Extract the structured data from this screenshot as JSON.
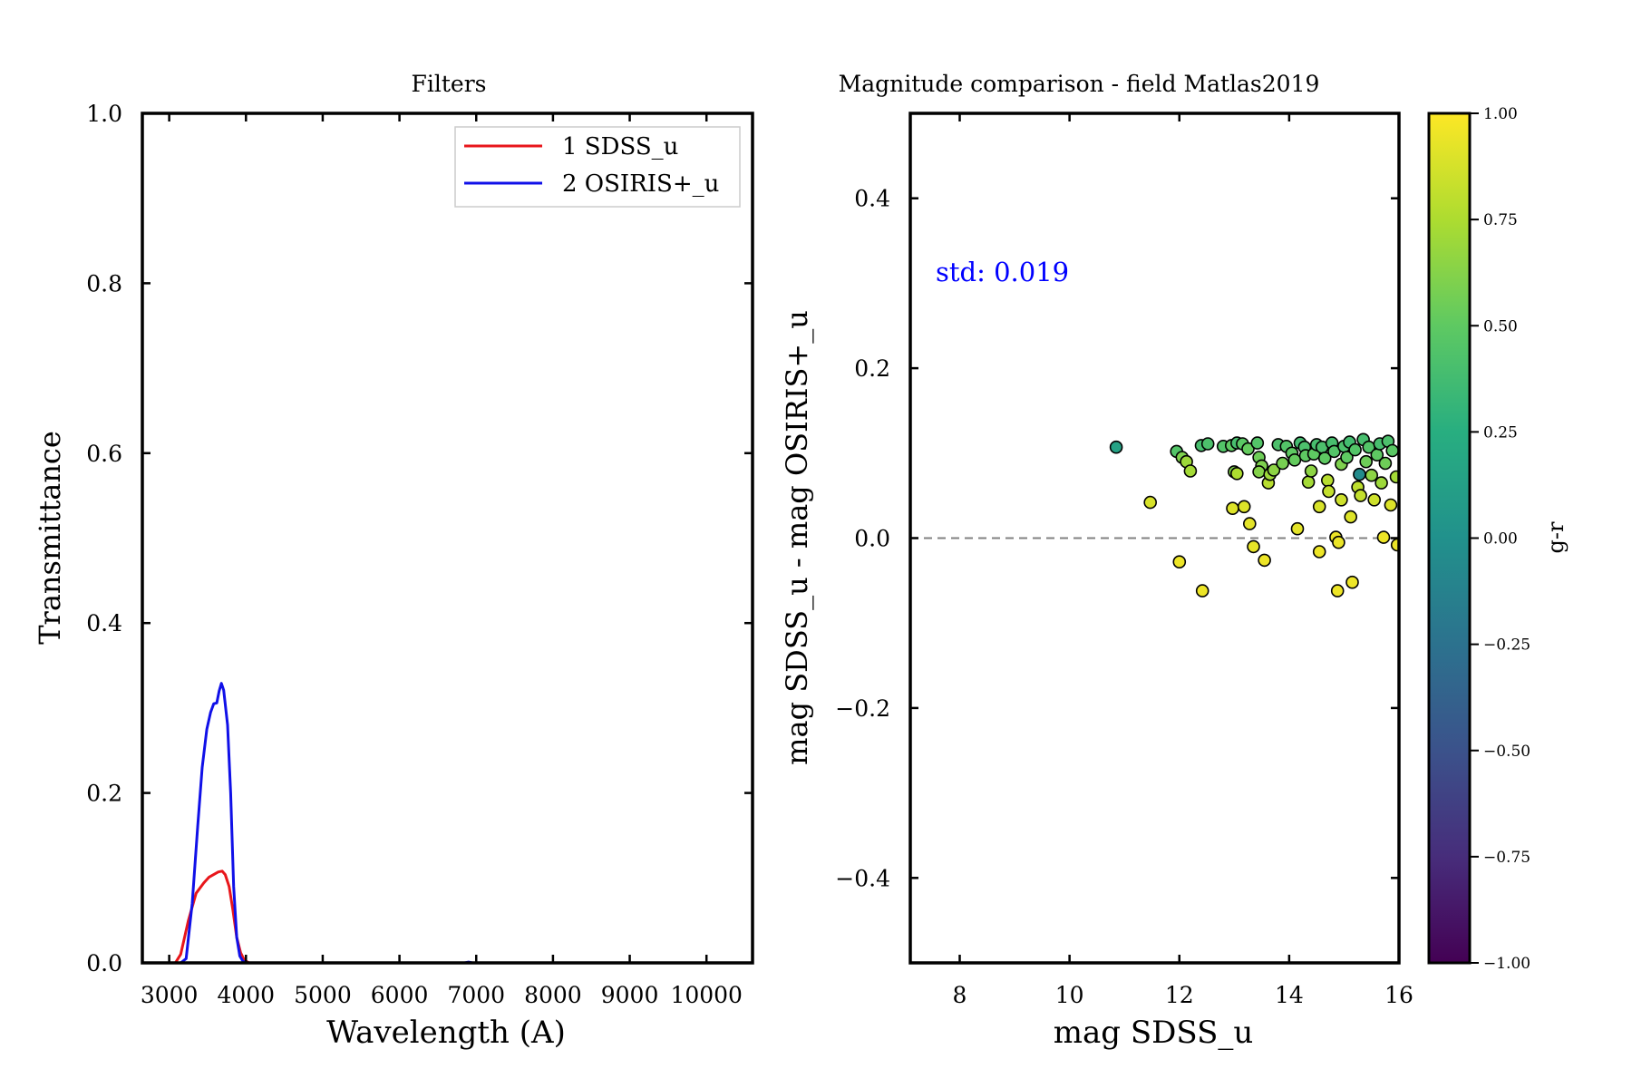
{
  "chart_data": [
    {
      "type": "line",
      "title": "Filters",
      "xlabel": "Wavelength (A)",
      "ylabel": "Transmittance",
      "xlim": [
        2650,
        10600
      ],
      "ylim": [
        0.0,
        1.0
      ],
      "x_ticks": [
        3000,
        4000,
        5000,
        6000,
        7000,
        8000,
        9000,
        10000
      ],
      "x_tick_labels": [
        "3000",
        "4000",
        "5000",
        "6000",
        "7000",
        "8000",
        "9000",
        "10000"
      ],
      "y_ticks": [
        0.0,
        0.2,
        0.4,
        0.6,
        0.8,
        1.0
      ],
      "y_tick_labels": [
        "0.0",
        "0.2",
        "0.4",
        "0.6",
        "0.8",
        "1.0"
      ],
      "legend_position": "top-right",
      "grid": false,
      "series": [
        {
          "name": "1 SDSS_u",
          "color": "#e8161b",
          "x": [
            2980,
            3080,
            3150,
            3250,
            3350,
            3450,
            3520,
            3580,
            3640,
            3690,
            3730,
            3780,
            3830,
            3880,
            3930,
            3980,
            4040,
            4100,
            7000
          ],
          "y": [
            0.0,
            0.0,
            0.01,
            0.05,
            0.082,
            0.094,
            0.101,
            0.104,
            0.107,
            0.108,
            0.104,
            0.09,
            0.062,
            0.03,
            0.012,
            0.003,
            0.0,
            0.0,
            0.0
          ]
        },
        {
          "name": "2 OSIRIS+_u",
          "color": "#1010e8",
          "x": [
            2980,
            3150,
            3220,
            3300,
            3370,
            3430,
            3490,
            3540,
            3580,
            3620,
            3650,
            3680,
            3710,
            3760,
            3800,
            3840,
            3880,
            3920,
            3960,
            4020,
            6850,
            6900,
            6950,
            7000
          ],
          "y": [
            0.0,
            0.0,
            0.005,
            0.07,
            0.16,
            0.23,
            0.275,
            0.295,
            0.305,
            0.306,
            0.32,
            0.329,
            0.321,
            0.28,
            0.2,
            0.09,
            0.03,
            0.008,
            0.002,
            0.0,
            0.0,
            0.001,
            0.0,
            0.0
          ]
        }
      ]
    },
    {
      "type": "scatter",
      "title": "Magnitude comparison - field Matlas2019",
      "xlabel": "mag SDSS_u",
      "ylabel": "mag SDSS_u - mag OSIRIS+_u",
      "xlim": [
        7.1,
        16.0
      ],
      "ylim": [
        -0.5,
        0.5
      ],
      "x_ticks": [
        8,
        10,
        12,
        14,
        16
      ],
      "x_tick_labels": [
        "8",
        "10",
        "12",
        "14",
        "16"
      ],
      "y_ticks": [
        -0.4,
        -0.2,
        0.0,
        0.2,
        0.4
      ],
      "y_tick_labels": [
        "−0.4",
        "−0.2",
        "0.0",
        "0.2",
        "0.4"
      ],
      "reference_line_y": 0.0,
      "annotation": {
        "text": "std: 0.019",
        "color": "#0000ff"
      },
      "colorbar": {
        "label": "g-r",
        "range": [
          -1.0,
          1.0
        ],
        "ticks": [
          -1.0,
          -0.75,
          -0.5,
          -0.25,
          0.0,
          0.25,
          0.5,
          0.75,
          1.0
        ],
        "tick_labels": [
          "−1.00",
          "−0.75",
          "−0.50",
          "−0.25",
          "0.00",
          "0.25",
          "0.50",
          "0.75",
          "1.00"
        ],
        "colormap": "viridis"
      },
      "points": [
        {
          "x": 10.85,
          "y": 0.107,
          "c": 0.15
        },
        {
          "x": 11.47,
          "y": 0.042,
          "c": 0.88
        },
        {
          "x": 11.95,
          "y": 0.102,
          "c": 0.45
        },
        {
          "x": 12.05,
          "y": 0.095,
          "c": 0.6
        },
        {
          "x": 12.13,
          "y": 0.09,
          "c": 0.7
        },
        {
          "x": 12.2,
          "y": 0.079,
          "c": 0.72
        },
        {
          "x": 12.0,
          "y": -0.028,
          "c": 0.95
        },
        {
          "x": 12.42,
          "y": -0.062,
          "c": 0.95
        },
        {
          "x": 12.4,
          "y": 0.109,
          "c": 0.4
        },
        {
          "x": 12.52,
          "y": 0.111,
          "c": 0.42
        },
        {
          "x": 12.8,
          "y": 0.108,
          "c": 0.45
        },
        {
          "x": 12.95,
          "y": 0.109,
          "c": 0.5
        },
        {
          "x": 13.05,
          "y": 0.112,
          "c": 0.4
        },
        {
          "x": 13.15,
          "y": 0.111,
          "c": 0.48
        },
        {
          "x": 13.25,
          "y": 0.105,
          "c": 0.52
        },
        {
          "x": 13.0,
          "y": 0.078,
          "c": 0.6
        },
        {
          "x": 13.05,
          "y": 0.076,
          "c": 0.75
        },
        {
          "x": 12.97,
          "y": 0.035,
          "c": 0.9
        },
        {
          "x": 13.18,
          "y": 0.037,
          "c": 0.9
        },
        {
          "x": 13.28,
          "y": 0.017,
          "c": 0.92
        },
        {
          "x": 13.35,
          "y": -0.01,
          "c": 0.93
        },
        {
          "x": 13.55,
          "y": -0.026,
          "c": 0.95
        },
        {
          "x": 13.42,
          "y": 0.112,
          "c": 0.45
        },
        {
          "x": 13.45,
          "y": 0.095,
          "c": 0.55
        },
        {
          "x": 13.5,
          "y": 0.085,
          "c": 0.6
        },
        {
          "x": 13.45,
          "y": 0.078,
          "c": 0.62
        },
        {
          "x": 13.62,
          "y": 0.065,
          "c": 0.78
        },
        {
          "x": 13.65,
          "y": 0.075,
          "c": 0.7
        },
        {
          "x": 13.72,
          "y": 0.08,
          "c": 0.65
        },
        {
          "x": 13.8,
          "y": 0.11,
          "c": 0.42
        },
        {
          "x": 13.88,
          "y": 0.088,
          "c": 0.58
        },
        {
          "x": 13.95,
          "y": 0.108,
          "c": 0.45
        },
        {
          "x": 14.05,
          "y": 0.1,
          "c": 0.5
        },
        {
          "x": 14.1,
          "y": 0.092,
          "c": 0.52
        },
        {
          "x": 14.15,
          "y": 0.011,
          "c": 0.92
        },
        {
          "x": 14.2,
          "y": 0.112,
          "c": 0.38
        },
        {
          "x": 14.28,
          "y": 0.107,
          "c": 0.42
        },
        {
          "x": 14.3,
          "y": 0.097,
          "c": 0.5
        },
        {
          "x": 14.35,
          "y": 0.066,
          "c": 0.72
        },
        {
          "x": 14.4,
          "y": 0.079,
          "c": 0.65
        },
        {
          "x": 14.45,
          "y": 0.099,
          "c": 0.5
        },
        {
          "x": 14.5,
          "y": 0.11,
          "c": 0.4
        },
        {
          "x": 14.55,
          "y": 0.037,
          "c": 0.88
        },
        {
          "x": 14.55,
          "y": -0.016,
          "c": 0.95
        },
        {
          "x": 14.6,
          "y": 0.107,
          "c": 0.42
        },
        {
          "x": 14.65,
          "y": 0.094,
          "c": 0.5
        },
        {
          "x": 14.7,
          "y": 0.068,
          "c": 0.78
        },
        {
          "x": 14.72,
          "y": 0.055,
          "c": 0.82
        },
        {
          "x": 14.78,
          "y": 0.112,
          "c": 0.4
        },
        {
          "x": 14.82,
          "y": 0.102,
          "c": 0.45
        },
        {
          "x": 14.85,
          "y": 0.001,
          "c": 0.95
        },
        {
          "x": 14.9,
          "y": -0.005,
          "c": 0.94
        },
        {
          "x": 14.88,
          "y": -0.062,
          "c": 0.95
        },
        {
          "x": 14.95,
          "y": 0.045,
          "c": 0.85
        },
        {
          "x": 14.95,
          "y": 0.087,
          "c": 0.6
        },
        {
          "x": 15.0,
          "y": 0.108,
          "c": 0.42
        },
        {
          "x": 15.05,
          "y": 0.095,
          "c": 0.5
        },
        {
          "x": 15.1,
          "y": 0.113,
          "c": 0.38
        },
        {
          "x": 15.12,
          "y": 0.025,
          "c": 0.9
        },
        {
          "x": 15.15,
          "y": -0.052,
          "c": 0.95
        },
        {
          "x": 15.2,
          "y": 0.104,
          "c": 0.45
        },
        {
          "x": 15.25,
          "y": 0.06,
          "c": 0.8
        },
        {
          "x": 15.28,
          "y": 0.075,
          "c": -0.05
        },
        {
          "x": 15.3,
          "y": 0.05,
          "c": 0.82
        },
        {
          "x": 15.35,
          "y": 0.116,
          "c": 0.4
        },
        {
          "x": 15.4,
          "y": 0.09,
          "c": 0.55
        },
        {
          "x": 15.45,
          "y": 0.107,
          "c": 0.45
        },
        {
          "x": 15.5,
          "y": 0.074,
          "c": 0.65
        },
        {
          "x": 15.55,
          "y": 0.045,
          "c": 0.85
        },
        {
          "x": 15.6,
          "y": 0.098,
          "c": 0.5
        },
        {
          "x": 15.65,
          "y": 0.111,
          "c": 0.4
        },
        {
          "x": 15.68,
          "y": 0.065,
          "c": 0.7
        },
        {
          "x": 15.72,
          "y": 0.001,
          "c": 0.95
        },
        {
          "x": 15.75,
          "y": 0.088,
          "c": 0.55
        },
        {
          "x": 15.8,
          "y": 0.114,
          "c": 0.42
        },
        {
          "x": 15.85,
          "y": 0.039,
          "c": 0.9
        },
        {
          "x": 15.88,
          "y": 0.103,
          "c": 0.48
        },
        {
          "x": 15.95,
          "y": 0.072,
          "c": 0.72
        },
        {
          "x": 15.97,
          "y": -0.008,
          "c": 0.94
        }
      ]
    }
  ]
}
